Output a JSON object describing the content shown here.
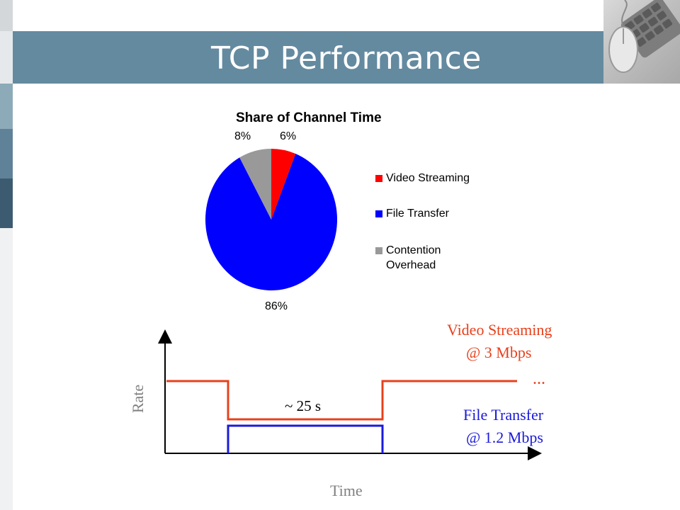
{
  "slide": {
    "title": "TCP Performance"
  },
  "colors": {
    "banner": "#648aa0",
    "video": "#e8401c",
    "file": "#1a1adb",
    "pie_video": "#ff0000",
    "pie_file": "#0000ff",
    "pie_overhead": "#999999"
  },
  "chart_data": [
    {
      "type": "pie",
      "title": "Share of Channel Time",
      "slices": [
        {
          "label": "Video Streaming",
          "value": 6,
          "display": "6%"
        },
        {
          "label": "File Transfer",
          "value": 86,
          "display": "86%"
        },
        {
          "label": "Contention Overhead",
          "value": 8,
          "display": "8%"
        }
      ],
      "legend": [
        "Video Streaming",
        "File Transfer",
        "Contention",
        "Overhead"
      ],
      "legend_position": "right"
    }
  ],
  "rate_diagram": {
    "y_label": "Rate",
    "x_label": "Time",
    "duration_label": "~ 25 s",
    "video_label_line1": "Video Streaming",
    "video_label_line2": "@ 3 Mbps",
    "ellipsis": "...",
    "file_label_line1": "File Transfer",
    "file_label_line2": "@ 1.2 Mbps"
  }
}
